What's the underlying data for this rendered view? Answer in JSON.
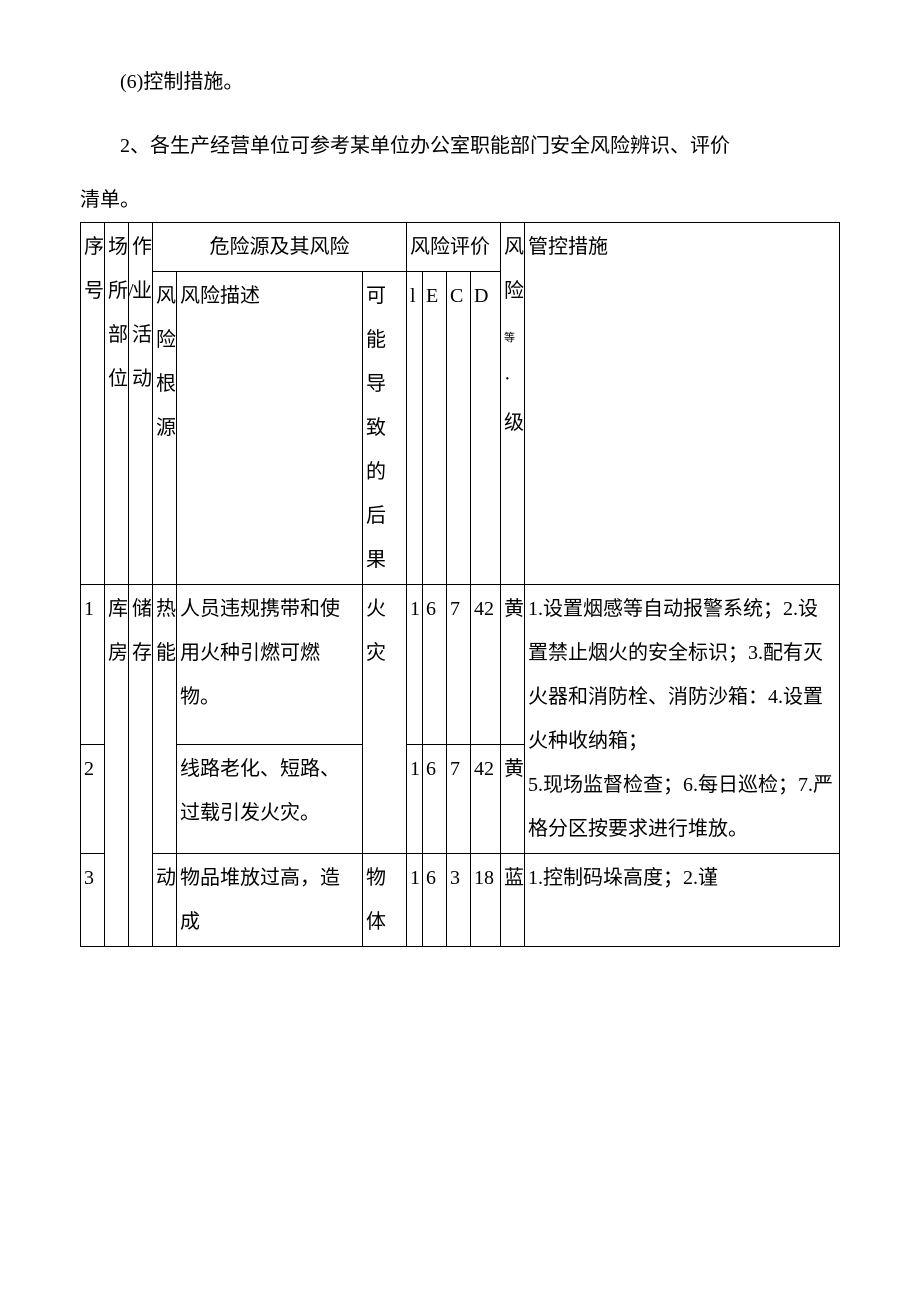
{
  "paragraphs": {
    "p1": "(6)控制措施。",
    "p2": "2、各生产经营单位可参考某单位办公室职能部门安全风险辨识、评价",
    "p3": "清单。"
  },
  "table": {
    "header": {
      "seq": "序号",
      "loc": "场所/部位",
      "act": "作业活动",
      "hazard_group": "危险源及其风险",
      "src": "风险根源",
      "desc": "风险描述",
      "cons": "可能导致的后果",
      "eval_group": "风险评价",
      "l": "l",
      "e": "E",
      "c": "C",
      "d": "D",
      "lvl": "风险等级",
      "ctrl": "管控措施",
      "lvl_mid": "等"
    },
    "rows": [
      {
        "seq": "1",
        "loc": "库房",
        "act": "储存",
        "src": "热能",
        "desc": "人员违规携带和使用火种引燃可燃物。",
        "cons": "火灾",
        "l": "1",
        "e": "6",
        "c": "7",
        "d": "42",
        "lvl": "黄",
        "ctrl": "1.设置烟感等自动报警系统；2.设置禁止烟火的安全标识；3.配有灭火器和消防栓、消防沙箱：4.设置火种收纳箱；\n5.现场监督检查；6.每日巡检；7.严格分区按要求进行堆放。"
      },
      {
        "seq": "2",
        "desc": "线路老化、短路、过载引发火灾。",
        "l": "1",
        "e": "6",
        "c": "7",
        "d": "42",
        "lvl": "黄"
      },
      {
        "seq": "3",
        "src": "动",
        "desc": "物品堆放过高，造成",
        "cons": "物体",
        "l": "1",
        "e": "6",
        "c": "3",
        "d": "18",
        "lvl": "蓝",
        "ctrl": "1.控制码垛高度；2.谨"
      }
    ]
  }
}
